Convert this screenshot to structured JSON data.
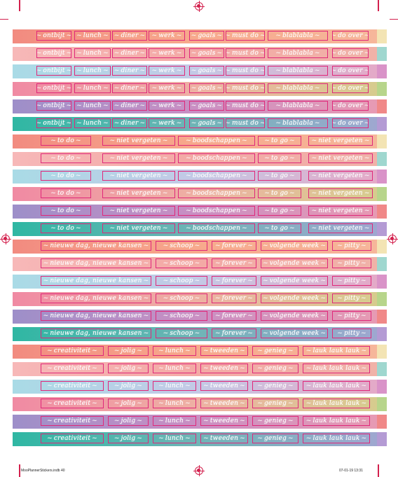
{
  "footer": {
    "filename": "MooPlannerStickers.indb   40",
    "date": "07-01-19   13:31"
  },
  "colors": {
    "registration": "#d3204d",
    "box_border": "#e0277a",
    "label_text": "#ffffff"
  },
  "groups": [
    {
      "labels": [
        "ontbijt",
        "lunch",
        "diner",
        "werk",
        "goals",
        "must do",
        "blablabla",
        "do over"
      ]
    },
    {
      "labels": [
        "to do",
        "niet vergeten",
        "boodschappen",
        "to go",
        "niet vergeten"
      ]
    },
    {
      "labels": [
        "nieuwe dag, nieuwe kansen",
        "schoop",
        "forever",
        "volgende week",
        "pitty"
      ]
    },
    {
      "labels": [
        "creativiteit",
        "jolig",
        "lunch",
        "tweeden",
        "genieg",
        "lauk lauk lauk"
      ]
    }
  ],
  "row_styles": [
    {
      "name": "coral",
      "grad": [
        "#f28b80",
        "#f7a98c",
        "#f6b69a"
      ],
      "tail": "#f3e4b4"
    },
    {
      "name": "blush",
      "grad": [
        "#f7b8b8",
        "#f3a9a5",
        "#f0b2a8"
      ],
      "tail": "#9fd7cf"
    },
    {
      "name": "sky",
      "grad": [
        "#a9dbe6",
        "#c3c9e6",
        "#e4a9c7"
      ],
      "tail": "#d993c8"
    },
    {
      "name": "rose",
      "grad": [
        "#f08aa3",
        "#eeb0a3",
        "#d6cc8e"
      ],
      "tail": "#b7d58b"
    },
    {
      "name": "lavender",
      "grad": [
        "#9d8fc9",
        "#c98fc3",
        "#e79ab3"
      ],
      "tail": "#f08888"
    },
    {
      "name": "teal",
      "grad": [
        "#2fb7a3",
        "#6fb4b6",
        "#9fa7d0"
      ],
      "tail": "#b49bd4"
    }
  ]
}
